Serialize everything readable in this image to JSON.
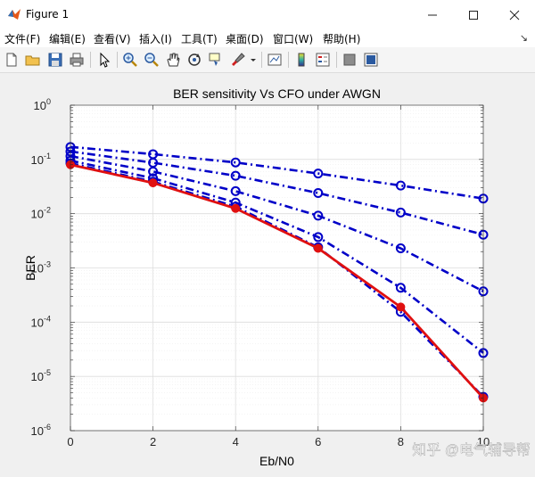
{
  "window": {
    "title": "Figure 1",
    "minimize_icon": "minimize-icon",
    "maximize_icon": "maximize-icon",
    "close_icon": "close-icon"
  },
  "menu": {
    "items": [
      "文件(F)",
      "编辑(E)",
      "查看(V)",
      "插入(I)",
      "工具(T)",
      "桌面(D)",
      "窗口(W)",
      "帮助(H)"
    ],
    "overflow_icon": "arrow-icon"
  },
  "toolbar": {
    "icons": [
      "new-figure-icon",
      "open-icon",
      "save-icon",
      "print-icon",
      "edit-plot-icon",
      "zoom-in-icon",
      "zoom-out-icon",
      "pan-icon",
      "rotate-icon",
      "data-cursor-icon",
      "brush-icon",
      "brush-dropdown-icon",
      "link-plot-icon",
      "colorbar-icon",
      "legend-icon",
      "hide-plot-tools-icon",
      "show-plot-tools-icon"
    ]
  },
  "watermark": "知乎 @电气辅导帮",
  "chart_data": {
    "type": "line",
    "title": "BER sensitivity Vs CFO under AWGN",
    "xlabel": "Eb/N0",
    "ylabel": "BER",
    "yscale": "log",
    "xlim": [
      0,
      10
    ],
    "ylim": [
      1e-06,
      1
    ],
    "xticks": [
      "0",
      "2",
      "4",
      "6",
      "8",
      "10"
    ],
    "yticks": [
      {
        "base": "10",
        "exp": "0"
      },
      {
        "base": "10",
        "exp": "-1"
      },
      {
        "base": "10",
        "exp": "-2"
      },
      {
        "base": "10",
        "exp": "-3"
      },
      {
        "base": "10",
        "exp": "-4"
      },
      {
        "base": "10",
        "exp": "-5"
      },
      {
        "base": "10",
        "exp": "-6"
      }
    ],
    "grid": true,
    "x": [
      0,
      2,
      4,
      6,
      8,
      10
    ],
    "series": [
      {
        "style": "dashdot",
        "marker": "o",
        "color": "#0000c8",
        "values": [
          0.17,
          0.125,
          0.088,
          0.055,
          0.033,
          0.019
        ]
      },
      {
        "style": "dashdot",
        "marker": "o",
        "color": "#0000c8",
        "values": [
          0.14,
          0.087,
          0.05,
          0.024,
          0.0105,
          0.0041
        ]
      },
      {
        "style": "dashdot",
        "marker": "o",
        "color": "#0000c8",
        "values": [
          0.115,
          0.06,
          0.026,
          0.0092,
          0.0023,
          0.00037
        ]
      },
      {
        "style": "dashdot",
        "marker": "o",
        "color": "#0000c8",
        "values": [
          0.095,
          0.045,
          0.016,
          0.0037,
          0.00043,
          2.7e-05
        ]
      },
      {
        "style": "dashdot",
        "marker": "o",
        "color": "#0000c8",
        "values": [
          0.085,
          0.039,
          0.0135,
          0.0024,
          0.000155,
          4.2e-06
        ]
      },
      {
        "style": "solid",
        "marker": "filled-circle",
        "color": "#e01010",
        "values": [
          0.08,
          0.037,
          0.0125,
          0.0023,
          0.00019,
          4e-06
        ]
      }
    ]
  }
}
